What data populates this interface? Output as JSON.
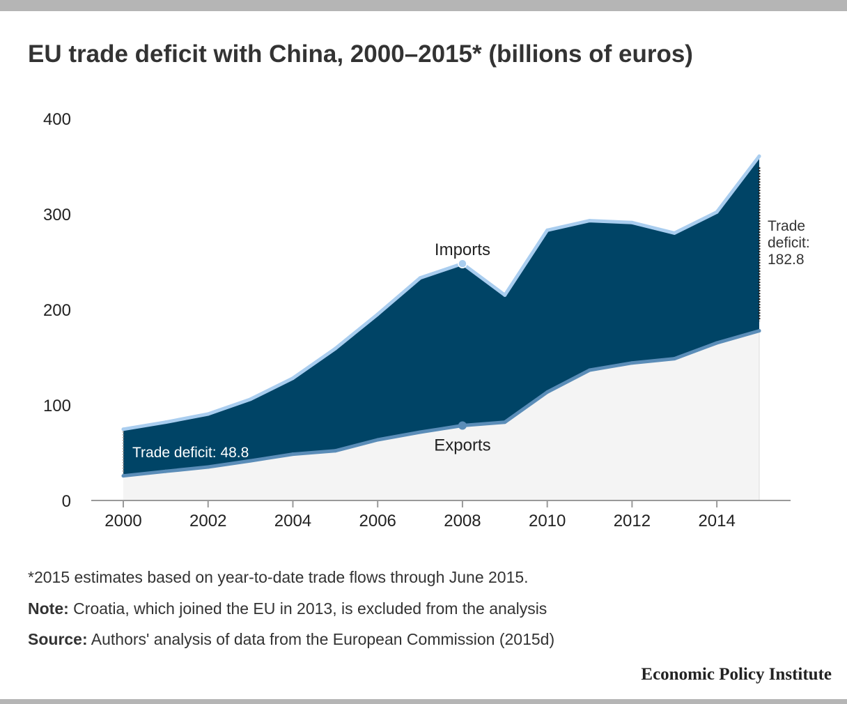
{
  "title": "EU trade deficit with China, 2000–2015* (billions of euros)",
  "chart_data": {
    "type": "area",
    "x": [
      2000,
      2001,
      2002,
      2003,
      2004,
      2005,
      2006,
      2007,
      2008,
      2009,
      2010,
      2011,
      2012,
      2013,
      2014,
      2015
    ],
    "series": [
      {
        "name": "Imports",
        "values": [
          74.6,
          82,
          90.5,
          106,
          128,
          159,
          195,
          233,
          248,
          215,
          283,
          293,
          291,
          280,
          302,
          360.5
        ]
      },
      {
        "name": "Exports",
        "values": [
          25.8,
          30.5,
          35,
          41.5,
          48.5,
          52,
          63.5,
          71.5,
          78.5,
          82,
          113.5,
          136.5,
          144,
          148.5,
          165,
          177.7
        ]
      }
    ],
    "ylim": [
      0,
      400
    ],
    "yticks": [
      "0",
      "100",
      "200",
      "300",
      "400"
    ],
    "xlim": [
      2000,
      2015
    ],
    "xticks": [
      "2000",
      "2002",
      "2004",
      "2006",
      "2008",
      "2010",
      "2012",
      "2014"
    ],
    "annotations": {
      "start": "Trade deficit: 48.8",
      "end": [
        "Trade",
        "deficit:",
        "182.8"
      ]
    },
    "colors": {
      "deficit_fill": "#004466",
      "imports_line": "#a9cdef",
      "exports_line": "#5b8db8",
      "exports_fill": "#f4f4f4",
      "axis": "#999999"
    }
  },
  "footnotes": {
    "asterisk": "*2015 estimates based on year-to-date trade flows through June 2015.",
    "note_label": "Note:",
    "note_text": " Croatia, which joined the EU in 2013, is excluded from the analysis",
    "source_label": "Source:",
    "source_text": " Authors' analysis of data from the European Commission (2015d)"
  },
  "brand": "Economic Policy Institute"
}
